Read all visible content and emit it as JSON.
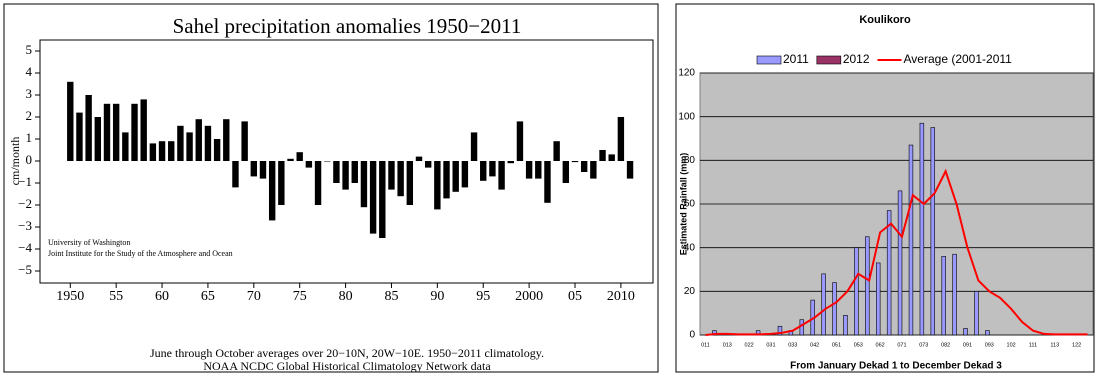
{
  "chart_data": [
    {
      "type": "bar",
      "title": "Sahel precipitation anomalies 1950−2011",
      "ylabel": "cm/month",
      "annotations": [
        "University of Washington",
        "Joint Institute for the Study of the Atmosphere and Ocean"
      ],
      "caption": [
        "June through October averages over 20−10N, 20W−10E. 1950−2011 climatology.",
        "NOAA NCDC Global Historical Climatology Network data"
      ],
      "x": [
        1950,
        1951,
        1952,
        1953,
        1954,
        1955,
        1956,
        1957,
        1958,
        1959,
        1960,
        1961,
        1962,
        1963,
        1964,
        1965,
        1966,
        1967,
        1968,
        1969,
        1970,
        1971,
        1972,
        1973,
        1974,
        1975,
        1976,
        1977,
        1978,
        1979,
        1980,
        1981,
        1982,
        1983,
        1984,
        1985,
        1986,
        1987,
        1988,
        1989,
        1990,
        1991,
        1992,
        1993,
        1994,
        1995,
        1996,
        1997,
        1998,
        1999,
        2000,
        2001,
        2002,
        2003,
        2004,
        2005,
        2006,
        2007,
        2008,
        2009,
        2010,
        2011
      ],
      "values": [
        3.6,
        2.2,
        3.0,
        2.0,
        2.6,
        2.6,
        1.3,
        2.6,
        2.8,
        0.8,
        0.9,
        0.9,
        1.6,
        1.3,
        1.9,
        1.6,
        1.0,
        1.9,
        -1.2,
        1.8,
        -0.7,
        -0.8,
        -2.7,
        -2.0,
        0.1,
        0.4,
        -0.3,
        -2.0,
        0.0,
        -1.0,
        -1.3,
        -1.0,
        -2.1,
        -3.3,
        -3.5,
        -1.3,
        -1.6,
        -2.0,
        0.2,
        -0.3,
        -2.2,
        -1.7,
        -1.4,
        -1.2,
        1.3,
        -0.9,
        -0.7,
        -1.3,
        -0.1,
        1.8,
        -0.8,
        -0.8,
        -1.9,
        0.9,
        -1.0,
        -0.05,
        -0.5,
        -0.8,
        0.5,
        0.3,
        2.0,
        -0.8
      ],
      "color": "#000000",
      "xlim": [
        1946.7,
        2013.5
      ],
      "xticks": [
        1950,
        {
          "value": 1955,
          "label": "55"
        },
        {
          "value": 1960,
          "label": "60"
        },
        {
          "value": 1965,
          "label": "65"
        },
        {
          "value": 1970,
          "label": "70"
        },
        {
          "value": 1975,
          "label": "75"
        },
        {
          "value": 1980,
          "label": "80"
        },
        {
          "value": 1985,
          "label": "85"
        },
        {
          "value": 1990,
          "label": "90"
        },
        {
          "value": 1995,
          "label": "95"
        },
        2000,
        {
          "value": 2005,
          "label": "05"
        },
        2010
      ],
      "ylim": [
        -5,
        5
      ],
      "yticks": [
        {
          "value": -5,
          "label": "−5"
        },
        {
          "value": -4,
          "label": "−4"
        },
        {
          "value": -3,
          "label": "−3"
        },
        {
          "value": -2,
          "label": "−2"
        },
        {
          "value": -1,
          "label": "−1"
        },
        0,
        1,
        2,
        3,
        4,
        5
      ]
    },
    {
      "type": "combo",
      "title": "Koulikoro",
      "ylabel": "Estimated Rainfall (mm)",
      "xlabel": "From January Dekad 1 to December Dekad 3",
      "categories": [
        "011",
        null,
        "013",
        null,
        "022",
        null,
        "031",
        null,
        "033",
        null,
        "042",
        null,
        "051",
        null,
        "053",
        null,
        "062",
        null,
        "071",
        null,
        "073",
        null,
        "082",
        null,
        "091",
        null,
        "093",
        null,
        "102",
        null,
        "111",
        null,
        "113",
        null,
        "122",
        null
      ],
      "series": [
        {
          "name": "2011",
          "type": "bar",
          "color": "#9999ff",
          "values": [
            0,
            2,
            0,
            0,
            0,
            2,
            0,
            4,
            2,
            7,
            16,
            28,
            24,
            9,
            40,
            45,
            33,
            57,
            66,
            87,
            97,
            95,
            36,
            37,
            3,
            20,
            2,
            0,
            0,
            0,
            0,
            0,
            0,
            0,
            0,
            0
          ]
        },
        {
          "name": "2012",
          "type": "bar",
          "color": "#993366",
          "values": [
            null,
            null,
            null,
            null,
            null,
            null,
            null,
            null,
            null,
            null,
            null,
            null,
            null,
            null,
            null,
            null,
            null,
            null,
            null,
            null,
            null,
            null,
            null,
            null,
            null,
            null,
            null,
            null,
            null,
            null,
            null,
            null,
            null,
            null,
            null,
            null
          ]
        },
        {
          "name": "Average (2001-2011",
          "type": "line",
          "color": "#ff0000",
          "values": [
            0,
            0.5,
            0.5,
            0.3,
            0.3,
            0.3,
            0.5,
            1,
            2,
            5,
            8,
            12,
            15,
            20,
            28,
            25,
            47,
            51,
            45,
            64,
            60,
            65,
            75,
            60,
            40,
            25,
            20,
            17,
            12,
            6,
            2,
            0.5,
            0.3,
            0.3,
            0.3,
            0.3
          ]
        }
      ],
      "ylim": [
        0,
        120
      ],
      "yticks": [
        0,
        20,
        40,
        60,
        80,
        100,
        120
      ],
      "grid": true,
      "background": "#c0c0c0"
    }
  ]
}
